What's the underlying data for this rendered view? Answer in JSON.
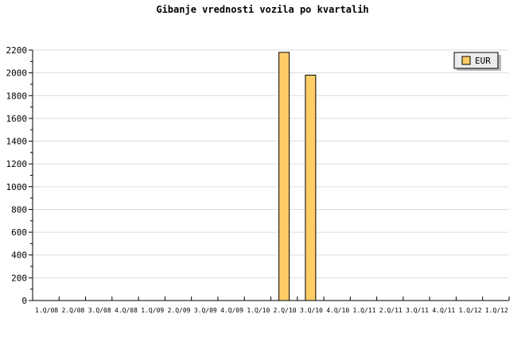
{
  "chart_data": {
    "type": "bar",
    "title": "Gibanje vrednosti vozila po kvartalih",
    "categories": [
      "1.Q/08",
      "2.Q/08",
      "3.Q/08",
      "4.Q/08",
      "1.Q/09",
      "2.Q/09",
      "3.Q/09",
      "4.Q/09",
      "1.Q/10",
      "2.Q/10",
      "3.Q/10",
      "4.Q/10",
      "1.Q/11",
      "2.Q/11",
      "3.Q/11",
      "4.Q/11",
      "1.Q/12",
      "1.Q/12"
    ],
    "series": [
      {
        "name": "EUR",
        "color": "#ffcc66",
        "values": [
          null,
          null,
          null,
          null,
          null,
          null,
          null,
          null,
          null,
          2180,
          1980,
          null,
          null,
          null,
          null,
          null,
          null,
          null
        ]
      }
    ],
    "ylim": [
      0,
      2200
    ],
    "yticks": [
      0,
      200,
      400,
      600,
      800,
      1000,
      1200,
      1400,
      1600,
      1800,
      2000,
      2200
    ],
    "grid": true,
    "legend": "top-right",
    "xlabel": "",
    "ylabel": ""
  }
}
